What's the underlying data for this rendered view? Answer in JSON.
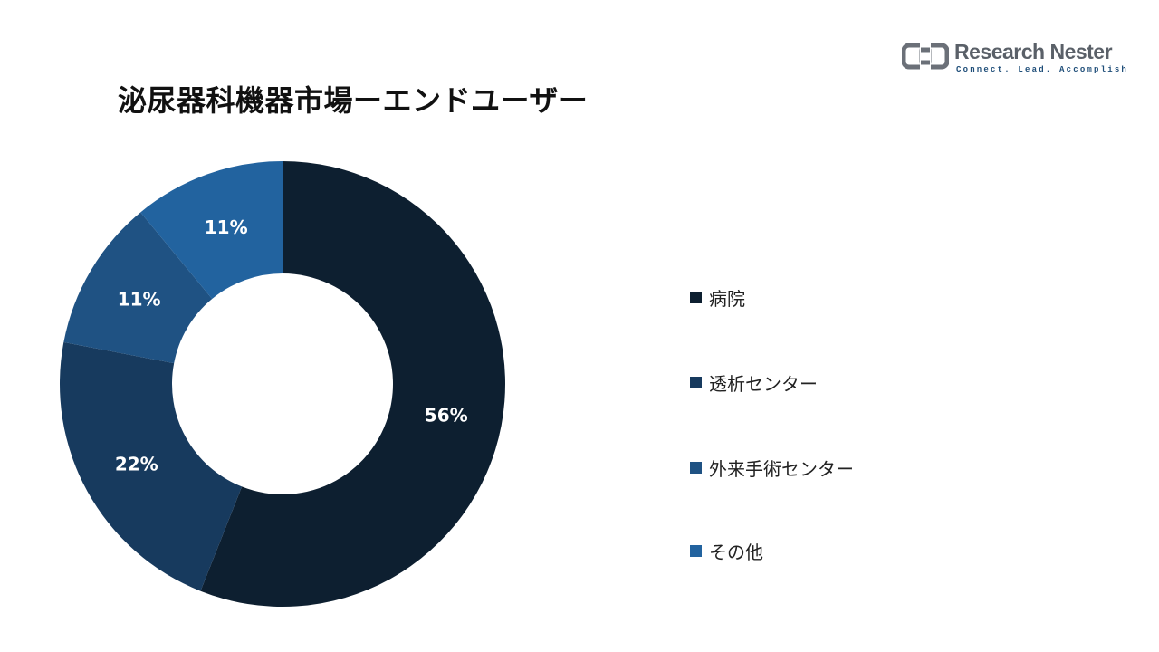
{
  "header": {
    "title": "泌尿器科機器市場ーエンドユーザー"
  },
  "brand": {
    "name": "Research Nester",
    "tagline": "Connect. Lead. Accomplish"
  },
  "chart_data": {
    "type": "pie",
    "donut": true,
    "title": "泌尿器科機器市場ーエンドユーザー",
    "categories": [
      "病院",
      "透析センター",
      "外来手術センター",
      "その他"
    ],
    "values": [
      56,
      22,
      11,
      11
    ],
    "labels": [
      "56%",
      "22%",
      "11%",
      "11%"
    ],
    "colors": [
      "#0d1f30",
      "#173a5e",
      "#1f5283",
      "#22639f"
    ],
    "label_color": "#ffffff",
    "legend_position": "right"
  }
}
